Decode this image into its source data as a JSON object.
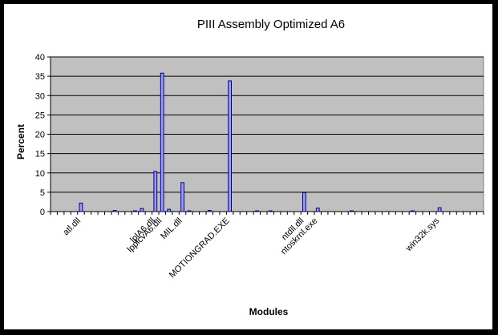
{
  "chart_data": {
    "type": "bar",
    "title": "PIII Assembly Optimized A6",
    "xlabel": "Modules",
    "ylabel": "Percent",
    "ylim": [
      0,
      40
    ],
    "yticks": [
      0,
      5,
      10,
      15,
      20,
      25,
      30,
      35,
      40
    ],
    "grid": true,
    "legend": "none",
    "colors": {
      "plot_bg": "#c0c0c0",
      "bar_fill": "#9999ff",
      "bar_stroke": "#000080",
      "frame": "#000000"
    },
    "category_count": 64,
    "bars": [
      {
        "index": 4,
        "value": 2.2
      },
      {
        "index": 9,
        "value": 0.3
      },
      {
        "index": 12,
        "value": 0.2
      },
      {
        "index": 13,
        "value": 0.8
      },
      {
        "index": 15,
        "value": 10.4
      },
      {
        "index": 16,
        "value": 35.8
      },
      {
        "index": 17,
        "value": 0.6
      },
      {
        "index": 19,
        "value": 7.5
      },
      {
        "index": 20,
        "value": 0.2
      },
      {
        "index": 23,
        "value": 0.3
      },
      {
        "index": 26,
        "value": 33.8
      },
      {
        "index": 30,
        "value": 0.2
      },
      {
        "index": 32,
        "value": 0.2
      },
      {
        "index": 37,
        "value": 4.9
      },
      {
        "index": 39,
        "value": 0.9
      },
      {
        "index": 44,
        "value": 0.2
      },
      {
        "index": 53,
        "value": 0.2
      },
      {
        "index": 57,
        "value": 1.0
      }
    ],
    "tick_labels": [
      {
        "index": 4,
        "label": "atl.dll"
      },
      {
        "index": 15,
        "label": "lplA6.dll"
      },
      {
        "index": 16,
        "label": "lpplcvA6.dll"
      },
      {
        "index": 19,
        "label": "MIL.dll"
      },
      {
        "index": 26,
        "label": "MOTIONGRAD.EXE"
      },
      {
        "index": 37,
        "label": "ntdll.dll"
      },
      {
        "index": 39,
        "label": "ntoskrnl.exe"
      },
      {
        "index": 57,
        "label": "win32k.sys"
      }
    ]
  }
}
